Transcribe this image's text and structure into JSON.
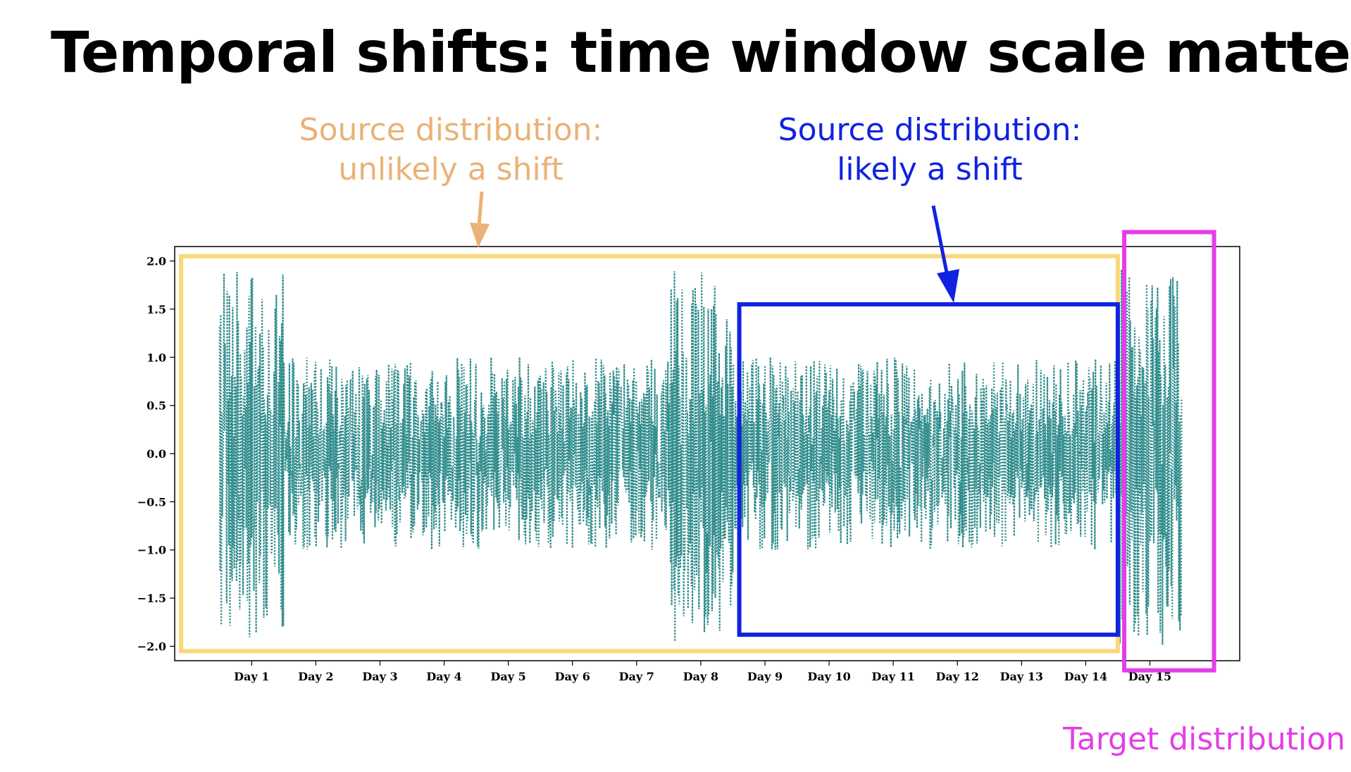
{
  "title": "Temporal shifts: time window scale matters",
  "annotations": {
    "source_unlikely": {
      "line1": "Source distribution:",
      "line2": "unlikely a shift",
      "color": "#eab276"
    },
    "source_likely": {
      "line1": "Source distribution:",
      "line2": "likely a shift",
      "color": "#1022e0"
    },
    "target": {
      "text": "Target distribution",
      "color": "#e43de8"
    }
  },
  "chart_data": {
    "type": "line",
    "x_unit": "day",
    "xlim": [
      -0.2,
      16.4
    ],
    "ylim": [
      -2.15,
      2.15
    ],
    "yticks": [
      -2.0,
      -1.5,
      -1.0,
      -0.5,
      0.0,
      0.5,
      1.0,
      1.5,
      2.0
    ],
    "ytick_labels": [
      "−2.0",
      "−1.5",
      "−1.0",
      "−0.5",
      "0.0",
      "0.5",
      "1.0",
      "1.5",
      "2.0"
    ],
    "xticks": [
      1,
      2,
      3,
      4,
      5,
      6,
      7,
      8,
      9,
      10,
      11,
      12,
      13,
      14,
      15
    ],
    "xtick_labels": [
      "Day 1",
      "Day 2",
      "Day 3",
      "Day 4",
      "Day 5",
      "Day 6",
      "Day 7",
      "Day 8",
      "Day 9",
      "Day 10",
      "Day 11",
      "Day 12",
      "Day 13",
      "Day 14",
      "Day 15"
    ],
    "line_color": "#2e8b8b",
    "line_style": "dotted",
    "grid": false,
    "x_range": [
      0.5,
      15.5
    ],
    "regimes": [
      {
        "x_start": 0.5,
        "x_end": 1.5,
        "amplitude": 2.0
      },
      {
        "x_start": 1.5,
        "x_end": 7.5,
        "amplitude": 1.0
      },
      {
        "x_start": 7.5,
        "x_end": 8.5,
        "amplitude": 2.0
      },
      {
        "x_start": 8.5,
        "x_end": 14.5,
        "amplitude": 1.0
      },
      {
        "x_start": 14.5,
        "x_end": 15.5,
        "amplitude": 2.0
      }
    ],
    "highlights": [
      {
        "name": "source-unlikely",
        "color": "#f9d77a",
        "x_start": -0.1,
        "x_end": 14.5,
        "y_start": -2.05,
        "y_end": 2.05
      },
      {
        "name": "source-likely",
        "color": "#1022e0",
        "x_start": 8.6,
        "x_end": 14.5,
        "y_start": -1.88,
        "y_end": 1.55
      },
      {
        "name": "target",
        "color": "#e43de8",
        "x_start": 14.6,
        "x_end": 16.0,
        "y_start": -2.25,
        "y_end": 2.3
      }
    ]
  }
}
